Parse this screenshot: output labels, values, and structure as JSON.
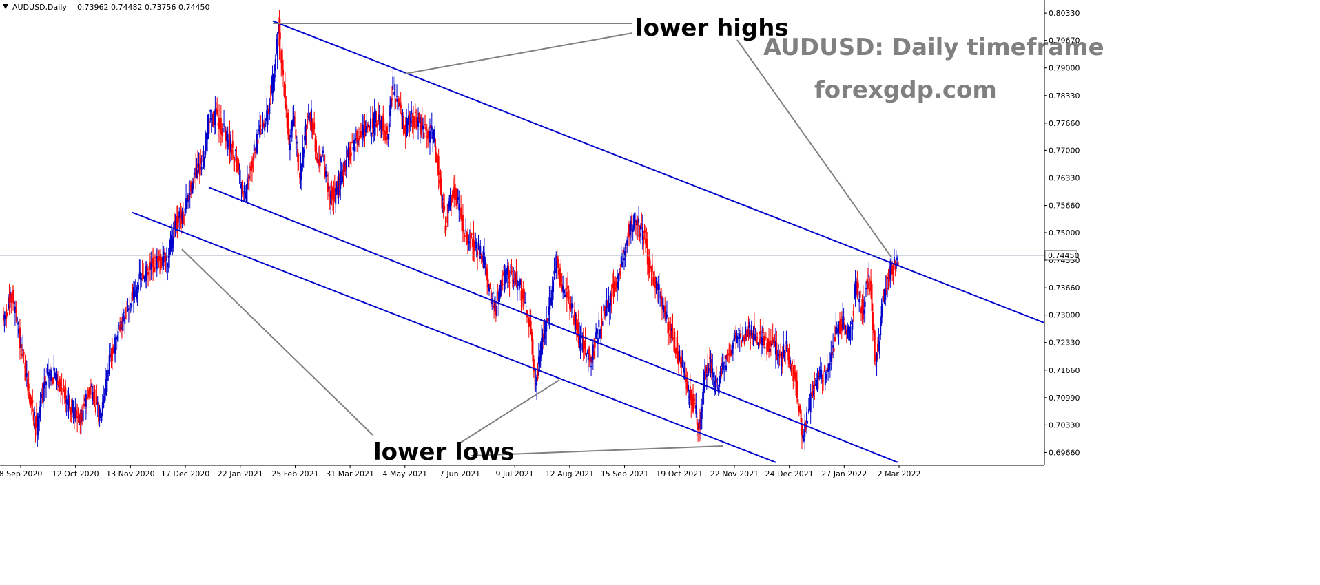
{
  "chart_data": {
    "type": "candlestick",
    "header": {
      "symbol_tf": "AUDUSD,Daily",
      "ohlc": "0.73962 0.74482 0.73756 0.74450"
    },
    "y_axis": {
      "range": [
        0.6935,
        0.8065
      ],
      "ticks": [
        "0.80330",
        "0.79670",
        "0.79000",
        "0.78330",
        "0.77660",
        "0.77000",
        "0.76330",
        "0.75660",
        "0.75000",
        "0.74330",
        "0.73660",
        "0.73000",
        "0.72330",
        "0.71660",
        "0.70990",
        "0.70330",
        "0.69660"
      ]
    },
    "x_axis": {
      "ticks": [
        "8 Sep 2020",
        "12 Oct 2020",
        "13 Nov 2020",
        "17 Dec 2020",
        "22 Jan 2021",
        "25 Feb 2021",
        "31 Mar 2021",
        "4 May 2021",
        "7 Jun 2021",
        "9 Jul 2021",
        "12 Aug 2021",
        "15 Sep 2021",
        "19 Oct 2021",
        "22 Nov 2021",
        "24 Dec 2021",
        "27 Jan 2022",
        "2 Mar 2022"
      ]
    },
    "current_price": "0.74450",
    "price_path": [
      [
        0,
        0.728
      ],
      [
        10,
        0.735
      ],
      [
        20,
        0.721
      ],
      [
        28,
        0.71
      ],
      [
        35,
        0.703
      ],
      [
        45,
        0.716
      ],
      [
        55,
        0.715
      ],
      [
        65,
        0.71
      ],
      [
        80,
        0.704
      ],
      [
        90,
        0.713
      ],
      [
        100,
        0.705
      ],
      [
        110,
        0.719
      ],
      [
        125,
        0.729
      ],
      [
        140,
        0.738
      ],
      [
        155,
        0.742
      ],
      [
        170,
        0.744
      ],
      [
        178,
        0.752
      ],
      [
        186,
        0.754
      ],
      [
        196,
        0.763
      ],
      [
        206,
        0.767
      ],
      [
        212,
        0.778
      ],
      [
        222,
        0.778
      ],
      [
        232,
        0.772
      ],
      [
        240,
        0.769
      ],
      [
        246,
        0.761
      ],
      [
        250,
        0.759
      ],
      [
        258,
        0.769
      ],
      [
        266,
        0.775
      ],
      [
        272,
        0.778
      ],
      [
        280,
        0.79
      ],
      [
        284,
        0.8
      ],
      [
        290,
        0.785
      ],
      [
        295,
        0.772
      ],
      [
        300,
        0.778
      ],
      [
        306,
        0.764
      ],
      [
        312,
        0.775
      ],
      [
        318,
        0.778
      ],
      [
        324,
        0.768
      ],
      [
        330,
        0.768
      ],
      [
        336,
        0.759
      ],
      [
        342,
        0.759
      ],
      [
        350,
        0.765
      ],
      [
        360,
        0.771
      ],
      [
        370,
        0.775
      ],
      [
        378,
        0.775
      ],
      [
        385,
        0.778
      ],
      [
        390,
        0.777
      ],
      [
        396,
        0.773
      ],
      [
        402,
        0.786
      ],
      [
        406,
        0.782
      ],
      [
        414,
        0.775
      ],
      [
        420,
        0.778
      ],
      [
        428,
        0.777
      ],
      [
        436,
        0.774
      ],
      [
        444,
        0.774
      ],
      [
        450,
        0.763
      ],
      [
        456,
        0.752
      ],
      [
        462,
        0.758
      ],
      [
        466,
        0.76
      ],
      [
        472,
        0.753
      ],
      [
        478,
        0.748
      ],
      [
        484,
        0.748
      ],
      [
        490,
        0.746
      ],
      [
        496,
        0.743
      ],
      [
        502,
        0.735
      ],
      [
        508,
        0.732
      ],
      [
        514,
        0.739
      ],
      [
        520,
        0.74
      ],
      [
        526,
        0.739
      ],
      [
        532,
        0.737
      ],
      [
        538,
        0.733
      ],
      [
        544,
        0.727
      ],
      [
        548,
        0.712
      ],
      [
        552,
        0.718
      ],
      [
        556,
        0.724
      ],
      [
        562,
        0.731
      ],
      [
        566,
        0.736
      ],
      [
        570,
        0.743
      ],
      [
        576,
        0.736
      ],
      [
        582,
        0.735
      ],
      [
        588,
        0.73
      ],
      [
        594,
        0.724
      ],
      [
        600,
        0.722
      ],
      [
        606,
        0.719
      ],
      [
        612,
        0.725
      ],
      [
        618,
        0.73
      ],
      [
        624,
        0.733
      ],
      [
        632,
        0.738
      ],
      [
        640,
        0.746
      ],
      [
        646,
        0.752
      ],
      [
        652,
        0.753
      ],
      [
        660,
        0.749
      ],
      [
        666,
        0.742
      ],
      [
        672,
        0.738
      ],
      [
        678,
        0.734
      ],
      [
        684,
        0.728
      ],
      [
        690,
        0.725
      ],
      [
        696,
        0.72
      ],
      [
        702,
        0.716
      ],
      [
        706,
        0.711
      ],
      [
        712,
        0.708
      ],
      [
        718,
        0.702
      ],
      [
        722,
        0.715
      ],
      [
        728,
        0.719
      ],
      [
        734,
        0.712
      ],
      [
        740,
        0.716
      ],
      [
        746,
        0.72
      ],
      [
        752,
        0.723
      ],
      [
        758,
        0.726
      ],
      [
        764,
        0.725
      ],
      [
        770,
        0.727
      ],
      [
        776,
        0.724
      ],
      [
        782,
        0.725
      ],
      [
        788,
        0.722
      ],
      [
        794,
        0.723
      ],
      [
        800,
        0.719
      ],
      [
        806,
        0.722
      ],
      [
        810,
        0.72
      ],
      [
        816,
        0.714
      ],
      [
        820,
        0.708
      ],
      [
        824,
        0.7
      ],
      [
        828,
        0.705
      ],
      [
        834,
        0.712
      ],
      [
        840,
        0.716
      ],
      [
        846,
        0.715
      ],
      [
        852,
        0.719
      ],
      [
        858,
        0.725
      ],
      [
        864,
        0.728
      ],
      [
        870,
        0.726
      ],
      [
        874,
        0.726
      ],
      [
        878,
        0.738
      ],
      [
        882,
        0.734
      ],
      [
        886,
        0.731
      ],
      [
        890,
        0.739
      ],
      [
        894,
        0.736
      ],
      [
        898,
        0.72
      ],
      [
        902,
        0.722
      ],
      [
        906,
        0.734
      ],
      [
        910,
        0.737
      ],
      [
        914,
        0.741
      ],
      [
        918,
        0.742
      ],
      [
        922,
        0.744
      ]
    ],
    "trend_lines": [
      {
        "label": "channel upper",
        "x1": 396,
        "y1": 0.8014,
        "x2": 1516,
        "y2": 0.7281
      },
      {
        "label": "channel middle",
        "x1": 303,
        "y1": 0.761,
        "x2": 1303,
        "y2": 0.6942
      },
      {
        "label": "channel lower",
        "x1": 192,
        "y1": 0.7549,
        "x2": 1126,
        "y2": 0.6942
      }
    ],
    "annotations": {
      "lower_highs": "lower highs",
      "lower_lows": "lower lows",
      "title": "AUDUSD: Daily timeframe",
      "brand": "forexgdp.com"
    },
    "colors": {
      "bull": "#0000cc",
      "bear": "#ff0000",
      "trendline": "#0000cc",
      "annotation_line": "#808080",
      "price_line": "#8090a8"
    }
  }
}
